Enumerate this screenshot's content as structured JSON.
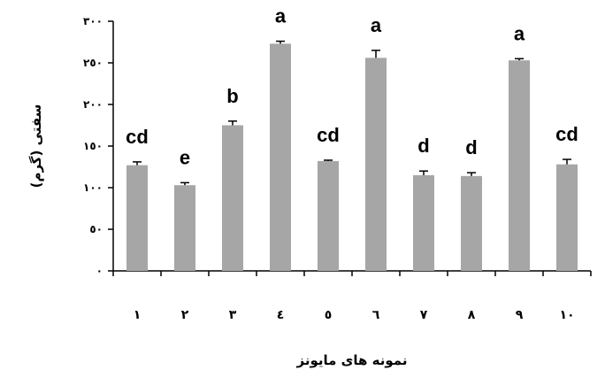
{
  "chart_data": {
    "type": "bar",
    "title": "",
    "xlabel": "نمونه های مایونز",
    "ylabel": "سفتی (گرم)",
    "ylim": [
      0,
      300
    ],
    "y_ticks": [
      0,
      50,
      100,
      150,
      200,
      250,
      300
    ],
    "y_tick_labels": [
      "٠",
      "٥٠",
      "١٠٠",
      "١٥٠",
      "٢٠٠",
      "٢٥٠",
      "٣٠٠"
    ],
    "categories": [
      "١",
      "٢",
      "٣",
      "٤",
      "٥",
      "٦",
      "٧",
      "٨",
      "٩",
      "١٠"
    ],
    "values": [
      127,
      103,
      175,
      273,
      132,
      256,
      115,
      114,
      253,
      128
    ],
    "errors": [
      4,
      3,
      5,
      3,
      1,
      9,
      5,
      4,
      2,
      6
    ],
    "significance_letters": [
      "cd",
      "e",
      "b",
      "a",
      "cd",
      "a",
      "d",
      "d",
      "a",
      "cd"
    ],
    "grid": false,
    "legend": "none",
    "bar_color": "#a6a6a6"
  }
}
